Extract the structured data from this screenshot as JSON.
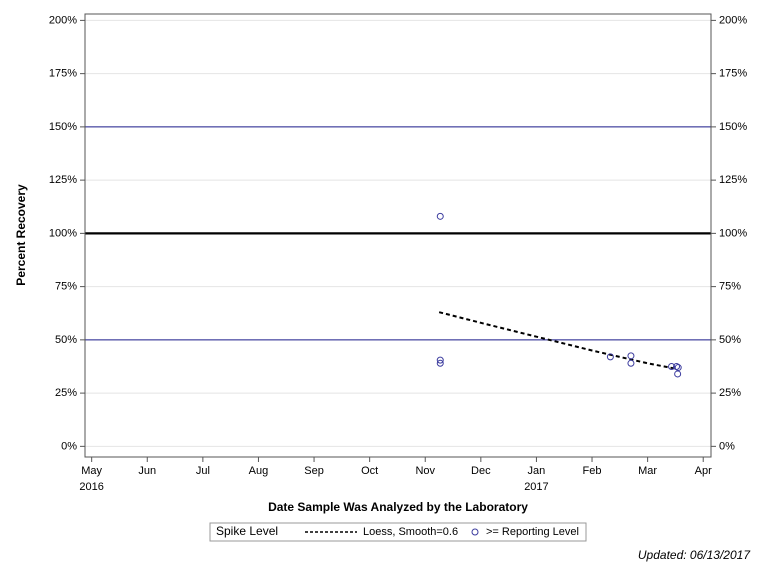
{
  "chart_data": {
    "type": "scatter",
    "x_label": "Date Sample Was Analyzed by the Laboratory",
    "y_label": "Percent Recovery",
    "xlim": [
      -0.12,
      11.14
    ],
    "xticks": [
      {
        "value": 0,
        "label": "May"
      },
      {
        "value": 1,
        "label": "Jun"
      },
      {
        "value": 2,
        "label": "Jul"
      },
      {
        "value": 3,
        "label": "Aug"
      },
      {
        "value": 4,
        "label": "Sep"
      },
      {
        "value": 5,
        "label": "Oct"
      },
      {
        "value": 6,
        "label": "Nov"
      },
      {
        "value": 7,
        "label": "Dec"
      },
      {
        "value": 8,
        "label": "Jan"
      },
      {
        "value": 9,
        "label": "Feb"
      },
      {
        "value": 10,
        "label": "Mar"
      },
      {
        "value": 11,
        "label": "Apr"
      }
    ],
    "x_year_labels": [
      {
        "value": 0,
        "label": "2016"
      },
      {
        "value": 8,
        "label": "2017"
      }
    ],
    "ylim": [
      -5,
      203
    ],
    "yticks": [
      {
        "value": 0,
        "label": "0%"
      },
      {
        "value": 25,
        "label": "25%"
      },
      {
        "value": 50,
        "label": "50%"
      },
      {
        "value": 75,
        "label": "75%"
      },
      {
        "value": 100,
        "label": "100%"
      },
      {
        "value": 125,
        "label": "125%"
      },
      {
        "value": 150,
        "label": "150%"
      },
      {
        "value": 175,
        "label": "175%"
      },
      {
        "value": 200,
        "label": "200%"
      }
    ],
    "grid": true,
    "reference_lines": [
      {
        "value": 100,
        "color": "#000000"
      },
      {
        "value": 150,
        "color": "#1f1f8f"
      },
      {
        "value": 50,
        "color": "#1f1f8f"
      }
    ],
    "legend_title": "Spike Level",
    "series": [
      {
        "name": "Loess, Smooth=0.6",
        "type": "line",
        "color": "#000000",
        "x": [
          6.25,
          7,
          8,
          9,
          9.5,
          10,
          10.5
        ],
        "values": [
          63,
          58,
          51.5,
          45,
          42,
          39,
          36.5
        ]
      },
      {
        "name": ">= Reporting Level",
        "type": "scatter",
        "color": "#3b3b9e",
        "x": [
          6.27,
          6.27,
          6.27,
          9.33,
          9.7,
          9.7,
          10.43,
          10.52,
          10.55,
          10.54
        ],
        "values": [
          108,
          40.5,
          39,
          42,
          42.5,
          39,
          37.5,
          37.5,
          37,
          34
        ]
      }
    ],
    "footer": "Updated: 06/13/2017"
  }
}
